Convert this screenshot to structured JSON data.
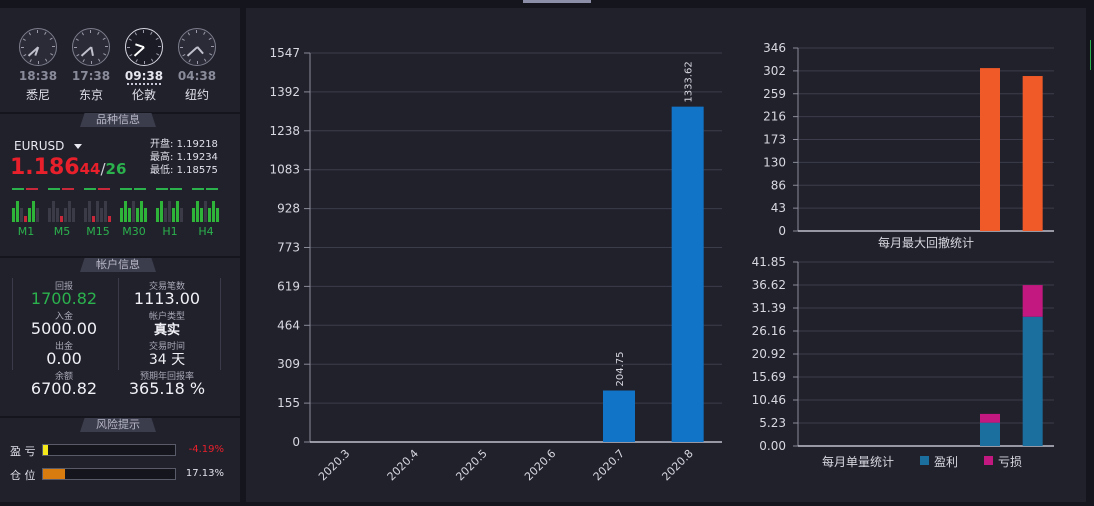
{
  "clocks": [
    {
      "time": "18:38",
      "city": "悉尼",
      "active": false,
      "h": 18,
      "m": 38
    },
    {
      "time": "17:38",
      "city": "东京",
      "active": false,
      "h": 17,
      "m": 38
    },
    {
      "time": "09:38",
      "city": "伦敦",
      "active": true,
      "h": 9,
      "m": 38
    },
    {
      "time": "04:38",
      "city": "纽约",
      "active": false,
      "h": 4,
      "m": 38
    }
  ],
  "product": {
    "section_title": "品种信息",
    "symbol": "EURUSD",
    "price_main": "1.186",
    "price_bid_frac": "44",
    "price_sep": "/",
    "price_ask_frac": "26",
    "open_label": "开盘:",
    "open_value": "1.19218",
    "high_label": "最高:",
    "high_value": "1.19234",
    "low_label": "最低:",
    "low_value": "1.18575",
    "timeframes": [
      "M1",
      "M5",
      "M15",
      "M30",
      "H1",
      "H4"
    ]
  },
  "account": {
    "section_title": "帐户信息",
    "profit_label": "回报",
    "profit_value": "1700.82",
    "deposit_label": "入金",
    "deposit_value": "5000.00",
    "withdraw_label": "出金",
    "withdraw_value": "0.00",
    "balance_label": "余额",
    "balance_value": "6700.82",
    "trades_label": "交易笔数",
    "trades_value": "1113.00",
    "type_label": "帐户类型",
    "type_value": "真实",
    "days_label": "交易时间",
    "days_value": "34 天",
    "annual_label": "预期年回报率",
    "annual_value": "365.18 %"
  },
  "risk": {
    "section_title": "风险提示",
    "pl_label": "盈 亏",
    "pl_value": "-4.19%",
    "pl_fill": 0.04,
    "pos_label": "仓 位",
    "pos_value": "17.13%",
    "pos_fill": 0.17
  },
  "colors": {
    "blue": "#1174c7",
    "orange": "#f05a28",
    "pink": "#c2187f",
    "teal": "#1a6f9e",
    "green": "#2bb24d",
    "red": "#e8202b"
  },
  "chart_data": [
    {
      "type": "bar",
      "categories": [
        "2020.3",
        "2020.4",
        "2020.5",
        "2020.6",
        "2020.7",
        "2020.8"
      ],
      "values": [
        0,
        0,
        0,
        0,
        204.75,
        1333.62
      ],
      "data_labels": [
        "",
        "",
        "",
        "",
        "204.75",
        "1333.62"
      ],
      "yticks": [
        "0",
        "155",
        "309",
        "464",
        "619",
        "773",
        "928",
        "1083",
        "1238",
        "1392",
        "1547"
      ],
      "ylim": [
        0,
        1547
      ]
    },
    {
      "type": "bar",
      "title": "每月最大回撤统计",
      "values": [
        0,
        0,
        0,
        0,
        308,
        293
      ],
      "yticks": [
        "0",
        "43",
        "86",
        "130",
        "173",
        "216",
        "259",
        "302",
        "346"
      ],
      "ylim": [
        0,
        346
      ]
    },
    {
      "type": "bar",
      "stacked": true,
      "title": "每月单量统计",
      "series": [
        {
          "name": "盈利",
          "values": [
            0,
            0,
            0,
            0,
            5.3,
            29.4
          ]
        },
        {
          "name": "亏损",
          "values": [
            0,
            0,
            0,
            0,
            2.0,
            7.2
          ]
        }
      ],
      "yticks": [
        "0.00",
        "5.23",
        "10.46",
        "15.69",
        "20.92",
        "26.16",
        "31.39",
        "36.62",
        "41.85"
      ],
      "ylim": [
        0,
        41.85
      ]
    }
  ]
}
